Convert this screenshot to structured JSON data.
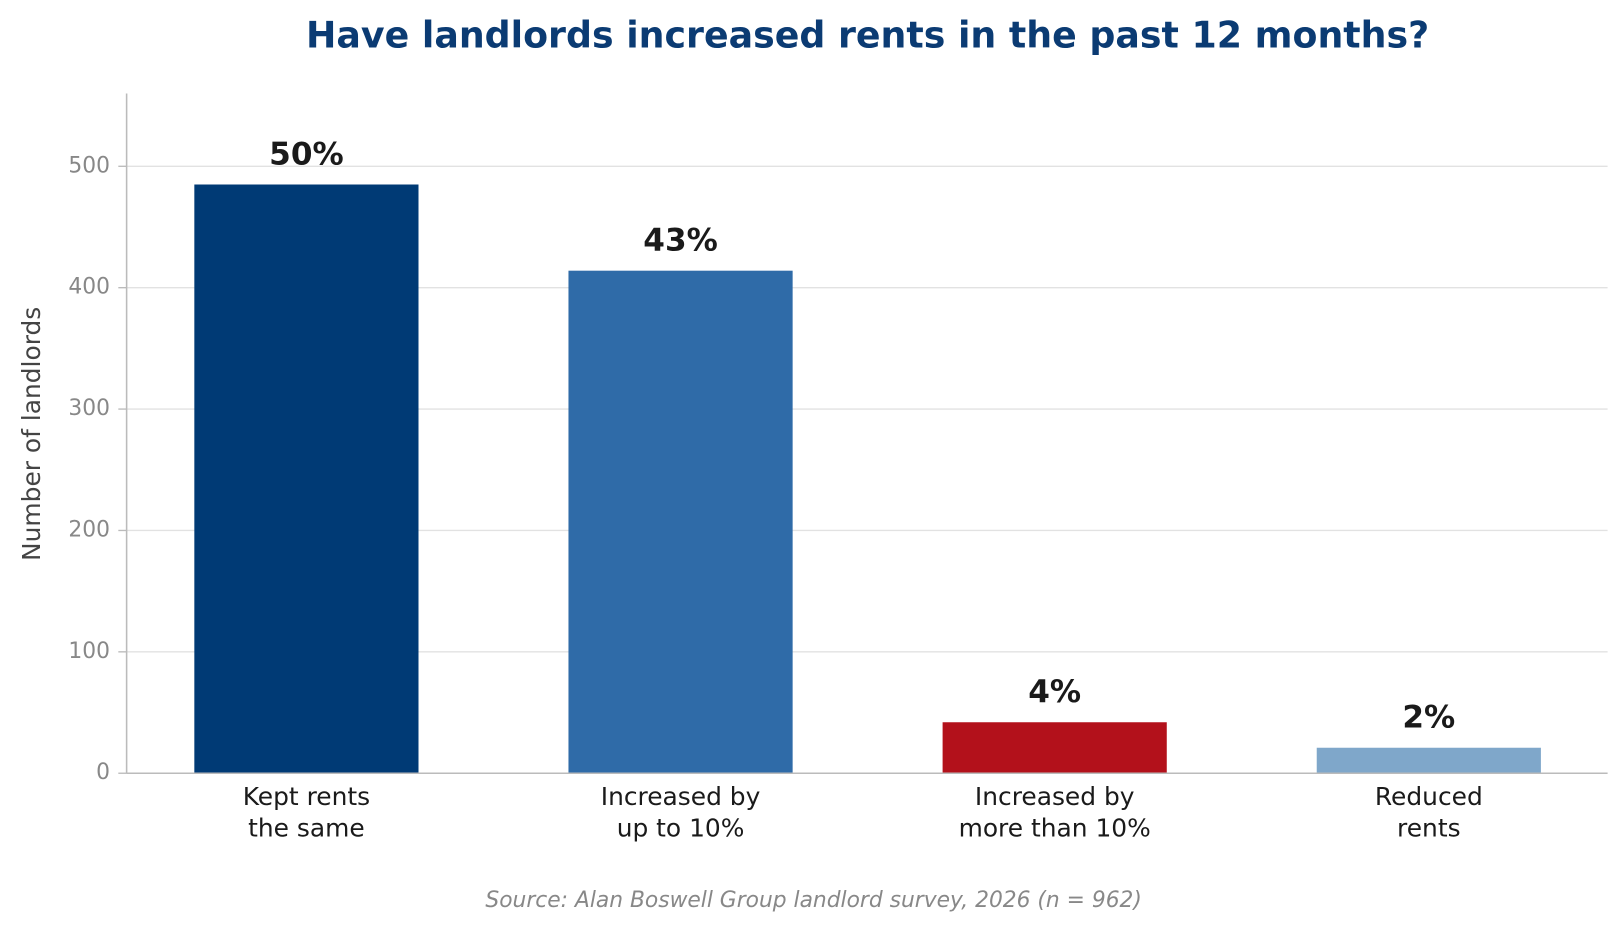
{
  "chart_data": {
    "type": "bar",
    "title": "Have landlords increased rents in the past 12 months?",
    "y_label": "Number of landlords",
    "source": "Source: Alan Boswell Group landlord survey, 2026 (n = 962)",
    "categories": [
      "Kept rents\nthe same",
      "Increased by\nup to 10%",
      "Increased by\nmore than 10%",
      "Reduced\nrents"
    ],
    "values": [
      485,
      414,
      42,
      21
    ],
    "value_labels": [
      "50%",
      "43%",
      "4%",
      "2%"
    ],
    "colors": [
      "#003a75",
      "#2f6ba8",
      "#b3111b",
      "#7fa7ca"
    ],
    "ylim": [
      0,
      560
    ],
    "yticks": [
      0,
      100,
      200,
      300,
      400,
      500
    ],
    "grid": true
  }
}
